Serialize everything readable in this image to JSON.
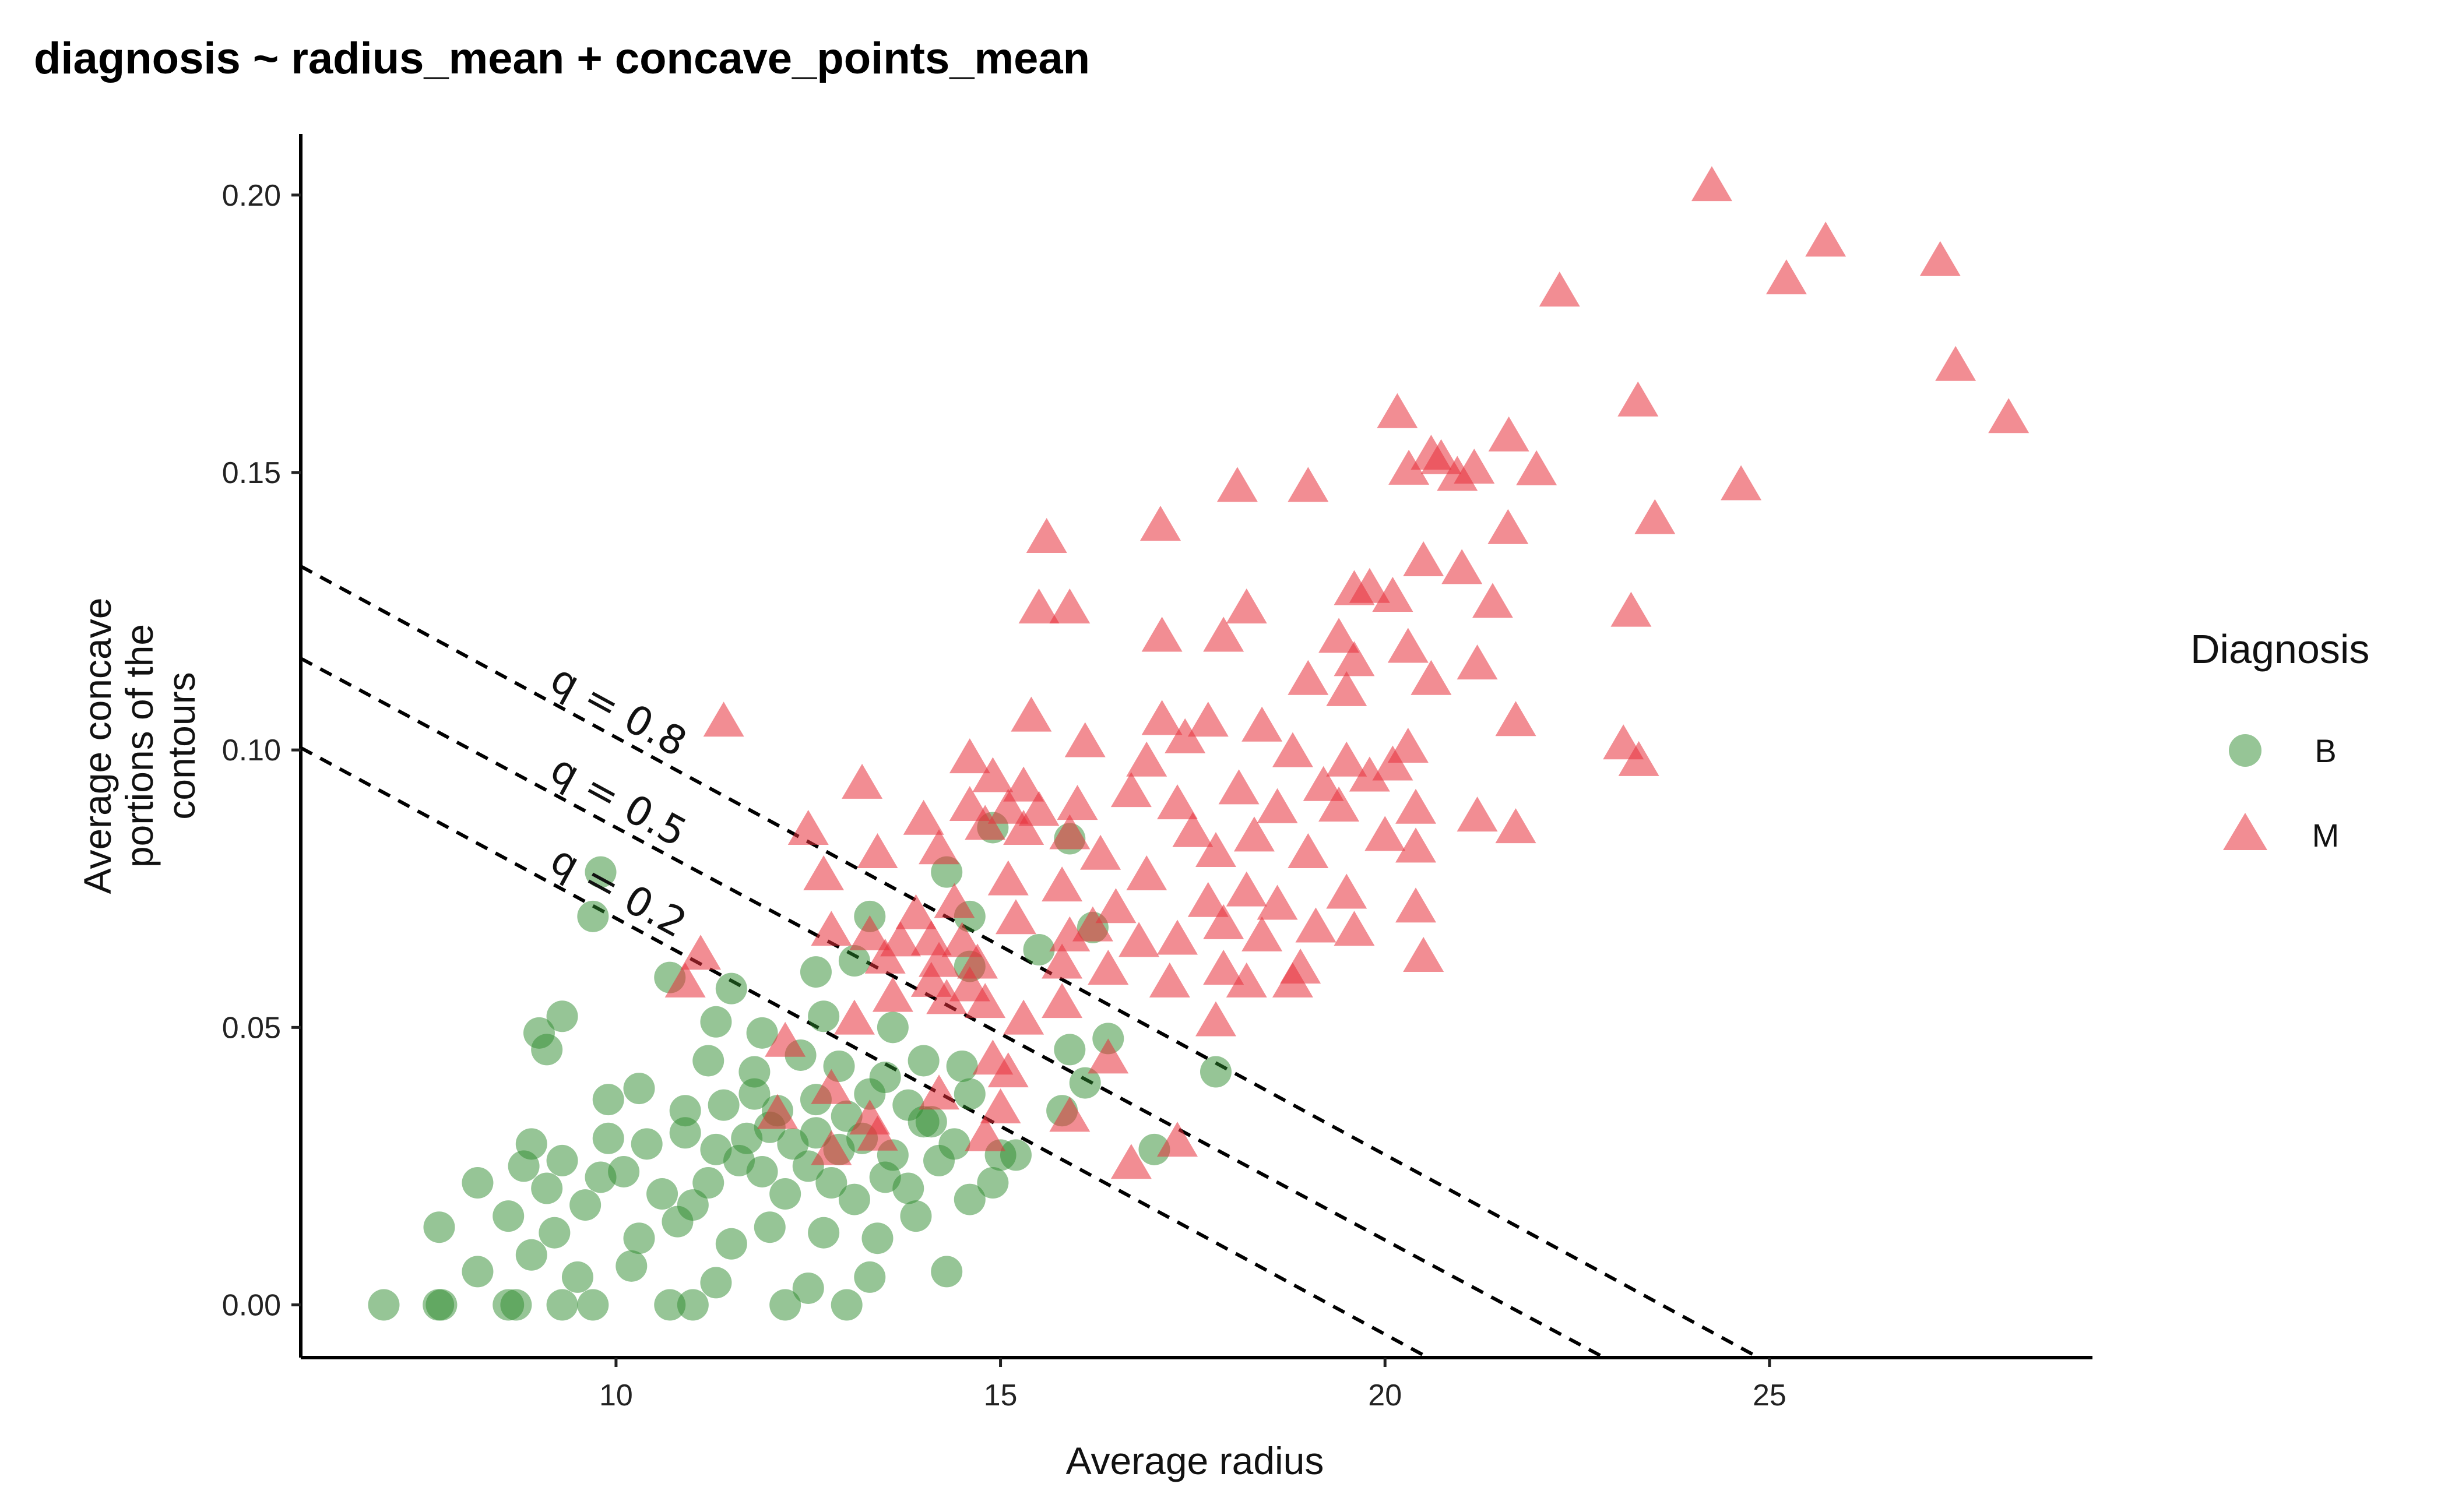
{
  "chart_data": {
    "type": "scatter",
    "title": "diagnosis ~ radius_mean + concave_points_mean",
    "xlabel": "Average radius",
    "ylabel_lines": [
      "Average concave",
      "portions of the",
      "contours"
    ],
    "xlim": [
      5.9,
      29.2
    ],
    "ylim": [
      -0.0095,
      0.211
    ],
    "x_ticks": [
      10,
      15,
      20,
      25
    ],
    "x_tick_labels": [
      "10",
      "15",
      "20",
      "25"
    ],
    "y_ticks": [
      0.0,
      0.05,
      0.1,
      0.15,
      0.2
    ],
    "y_tick_labels": [
      "0.00",
      "0.05",
      "0.10",
      "0.15",
      "0.20"
    ],
    "grid": false,
    "legend": {
      "title": "Diagnosis",
      "position": "right",
      "entries": [
        "B",
        "M"
      ]
    },
    "colors": {
      "B": "#2e8b2e",
      "M": "#e8303a"
    },
    "series": [
      {
        "name": "B",
        "marker": "circle",
        "points": [
          [
            6.98,
            0.0
          ],
          [
            7.69,
            0.0
          ],
          [
            7.73,
            0.0
          ],
          [
            8.6,
            0.0
          ],
          [
            8.7,
            0.0
          ],
          [
            9.3,
            0.0
          ],
          [
            9.7,
            0.0
          ],
          [
            10.7,
            0.0
          ],
          [
            11.0,
            0.0
          ],
          [
            12.2,
            0.0
          ],
          [
            13.0,
            0.0
          ],
          [
            8.2,
            0.006
          ],
          [
            8.9,
            0.009
          ],
          [
            9.5,
            0.005
          ],
          [
            10.2,
            0.007
          ],
          [
            11.3,
            0.004
          ],
          [
            12.5,
            0.003
          ],
          [
            13.3,
            0.005
          ],
          [
            14.3,
            0.006
          ],
          [
            7.7,
            0.014
          ],
          [
            8.6,
            0.016
          ],
          [
            9.2,
            0.013
          ],
          [
            9.6,
            0.018
          ],
          [
            10.3,
            0.012
          ],
          [
            10.8,
            0.015
          ],
          [
            11.5,
            0.011
          ],
          [
            12.0,
            0.014
          ],
          [
            12.7,
            0.013
          ],
          [
            13.4,
            0.012
          ],
          [
            13.9,
            0.016
          ],
          [
            14.6,
            0.019
          ],
          [
            8.2,
            0.022
          ],
          [
            8.8,
            0.025
          ],
          [
            9.1,
            0.021
          ],
          [
            9.8,
            0.023
          ],
          [
            10.1,
            0.024
          ],
          [
            10.6,
            0.02
          ],
          [
            11.0,
            0.018
          ],
          [
            11.2,
            0.022
          ],
          [
            11.6,
            0.026
          ],
          [
            11.9,
            0.024
          ],
          [
            12.2,
            0.02
          ],
          [
            12.5,
            0.025
          ],
          [
            12.8,
            0.022
          ],
          [
            13.1,
            0.019
          ],
          [
            13.5,
            0.023
          ],
          [
            13.8,
            0.021
          ],
          [
            14.2,
            0.026
          ],
          [
            14.9,
            0.022
          ],
          [
            8.9,
            0.029
          ],
          [
            9.3,
            0.026
          ],
          [
            9.9,
            0.03
          ],
          [
            10.4,
            0.029
          ],
          [
            10.9,
            0.031
          ],
          [
            11.3,
            0.028
          ],
          [
            11.7,
            0.03
          ],
          [
            12.0,
            0.032
          ],
          [
            12.3,
            0.029
          ],
          [
            12.6,
            0.031
          ],
          [
            12.9,
            0.028
          ],
          [
            13.2,
            0.03
          ],
          [
            13.6,
            0.027
          ],
          [
            14.0,
            0.033
          ],
          [
            14.4,
            0.029
          ],
          [
            15.0,
            0.027
          ],
          [
            9.9,
            0.037
          ],
          [
            10.3,
            0.039
          ],
          [
            10.9,
            0.035
          ],
          [
            11.4,
            0.036
          ],
          [
            11.8,
            0.038
          ],
          [
            12.1,
            0.035
          ],
          [
            12.6,
            0.037
          ],
          [
            13.0,
            0.034
          ],
          [
            13.3,
            0.038
          ],
          [
            13.8,
            0.036
          ],
          [
            14.1,
            0.033
          ],
          [
            14.6,
            0.038
          ],
          [
            9.1,
            0.046
          ],
          [
            11.2,
            0.044
          ],
          [
            11.8,
            0.042
          ],
          [
            12.4,
            0.045
          ],
          [
            12.9,
            0.043
          ],
          [
            13.5,
            0.041
          ],
          [
            14.0,
            0.044
          ],
          [
            14.5,
            0.043
          ],
          [
            15.9,
            0.046
          ],
          [
            16.4,
            0.048
          ],
          [
            9.0,
            0.049
          ],
          [
            9.3,
            0.052
          ],
          [
            11.3,
            0.051
          ],
          [
            11.9,
            0.049
          ],
          [
            12.7,
            0.052
          ],
          [
            13.6,
            0.05
          ],
          [
            10.7,
            0.059
          ],
          [
            11.5,
            0.057
          ],
          [
            12.6,
            0.06
          ],
          [
            13.1,
            0.062
          ],
          [
            14.6,
            0.061
          ],
          [
            15.5,
            0.064
          ],
          [
            9.7,
            0.07
          ],
          [
            13.3,
            0.07
          ],
          [
            14.6,
            0.07
          ],
          [
            16.2,
            0.068
          ],
          [
            9.8,
            0.078
          ],
          [
            14.3,
            0.078
          ],
          [
            17.8,
            0.042
          ],
          [
            17.0,
            0.028
          ],
          [
            15.2,
            0.027
          ],
          [
            15.8,
            0.035
          ],
          [
            16.1,
            0.04
          ],
          [
            14.9,
            0.086
          ],
          [
            15.9,
            0.084
          ]
        ]
      },
      {
        "name": "M",
        "marker": "triangle",
        "points": [
          [
            24.25,
            0.2013
          ],
          [
            25.73,
            0.1913
          ],
          [
            27.22,
            0.1878
          ],
          [
            25.22,
            0.1845
          ],
          [
            22.27,
            0.1823
          ],
          [
            27.42,
            0.1689
          ],
          [
            28.11,
            0.1595
          ],
          [
            23.29,
            0.1625
          ],
          [
            20.16,
            0.1604
          ],
          [
            21.61,
            0.1562
          ],
          [
            21.16,
            0.1504
          ],
          [
            20.6,
            0.1529
          ],
          [
            20.73,
            0.1521
          ],
          [
            20.31,
            0.1502
          ],
          [
            21.97,
            0.1501
          ],
          [
            20.94,
            0.1491
          ],
          [
            18.08,
            0.1471
          ],
          [
            19.0,
            0.1471
          ],
          [
            24.63,
            0.1474
          ],
          [
            17.08,
            0.1401
          ],
          [
            15.6,
            0.1379
          ],
          [
            21.6,
            0.1395
          ],
          [
            23.51,
            0.1413
          ],
          [
            20.5,
            0.1337
          ],
          [
            21.0,
            0.1323
          ],
          [
            19.6,
            0.1285
          ],
          [
            19.8,
            0.1289
          ],
          [
            20.1,
            0.1273
          ],
          [
            15.5,
            0.1252
          ],
          [
            15.9,
            0.1252
          ],
          [
            18.2,
            0.1252
          ],
          [
            21.4,
            0.1262
          ],
          [
            23.2,
            0.1246
          ],
          [
            17.1,
            0.1201
          ],
          [
            17.9,
            0.1201
          ],
          [
            19.4,
            0.1199
          ],
          [
            19.6,
            0.1157
          ],
          [
            20.3,
            0.1181
          ],
          [
            21.2,
            0.1151
          ],
          [
            19.0,
            0.1123
          ],
          [
            20.6,
            0.1123
          ],
          [
            19.5,
            0.1103
          ],
          [
            15.4,
            0.1057
          ],
          [
            17.1,
            0.1051
          ],
          [
            18.4,
            0.1039
          ],
          [
            21.7,
            0.1049
          ],
          [
            11.4,
            0.1048
          ],
          [
            16.1,
            0.1011
          ],
          [
            17.4,
            0.1018
          ],
          [
            17.7,
            0.1048
          ],
          [
            18.8,
            0.0993
          ],
          [
            20.3,
            0.1001
          ],
          [
            14.6,
            0.0982
          ],
          [
            16.9,
            0.0976
          ],
          [
            19.5,
            0.0976
          ],
          [
            20.1,
            0.0969
          ],
          [
            23.1,
            0.1007
          ],
          [
            23.3,
            0.0977
          ],
          [
            13.2,
            0.0936
          ],
          [
            14.9,
            0.0948
          ],
          [
            15.3,
            0.0931
          ],
          [
            16.7,
            0.0921
          ],
          [
            18.1,
            0.0926
          ],
          [
            19.2,
            0.0932
          ],
          [
            19.8,
            0.0949
          ],
          [
            14.6,
            0.0896
          ],
          [
            15.1,
            0.0891
          ],
          [
            15.5,
            0.0887
          ],
          [
            16.0,
            0.0898
          ],
          [
            17.3,
            0.0899
          ],
          [
            18.6,
            0.0892
          ],
          [
            19.4,
            0.0895
          ],
          [
            20.4,
            0.0891
          ],
          [
            21.2,
            0.0877
          ],
          [
            12.5,
            0.0853
          ],
          [
            14.0,
            0.0871
          ],
          [
            14.8,
            0.0862
          ],
          [
            15.3,
            0.0853
          ],
          [
            15.9,
            0.0845
          ],
          [
            17.5,
            0.0849
          ],
          [
            18.3,
            0.0841
          ],
          [
            20.0,
            0.0842
          ],
          [
            21.7,
            0.0856
          ],
          [
            13.4,
            0.0811
          ],
          [
            14.2,
            0.0818
          ],
          [
            16.3,
            0.0808
          ],
          [
            17.8,
            0.0813
          ],
          [
            19.0,
            0.0811
          ],
          [
            20.4,
            0.0821
          ],
          [
            12.7,
            0.0771
          ],
          [
            15.1,
            0.0762
          ],
          [
            15.8,
            0.0751
          ],
          [
            16.9,
            0.0771
          ],
          [
            18.2,
            0.0742
          ],
          [
            19.5,
            0.0738
          ],
          [
            14.4,
            0.0721
          ],
          [
            16.5,
            0.0712
          ],
          [
            17.7,
            0.0723
          ],
          [
            18.6,
            0.0718
          ],
          [
            20.4,
            0.0713
          ],
          [
            13.9,
            0.0701
          ],
          [
            15.2,
            0.0692
          ],
          [
            16.2,
            0.0679
          ],
          [
            17.9,
            0.0683
          ],
          [
            19.1,
            0.0677
          ],
          [
            12.8,
            0.0671
          ],
          [
            13.3,
            0.0663
          ],
          [
            13.7,
            0.0652
          ],
          [
            14.1,
            0.0654
          ],
          [
            14.5,
            0.0651
          ],
          [
            15.9,
            0.0661
          ],
          [
            16.8,
            0.0651
          ],
          [
            17.3,
            0.0655
          ],
          [
            18.4,
            0.0661
          ],
          [
            19.6,
            0.0671
          ],
          [
            20.5,
            0.0624
          ],
          [
            11.1,
            0.0628
          ],
          [
            13.5,
            0.0621
          ],
          [
            14.2,
            0.0615
          ],
          [
            14.7,
            0.0612
          ],
          [
            15.8,
            0.0612
          ],
          [
            16.4,
            0.0601
          ],
          [
            17.9,
            0.0601
          ],
          [
            18.9,
            0.0603
          ],
          [
            10.9,
            0.0578
          ],
          [
            14.1,
            0.0579
          ],
          [
            14.6,
            0.0571
          ],
          [
            17.2,
            0.0578
          ],
          [
            18.2,
            0.0578
          ],
          [
            18.8,
            0.0578
          ],
          [
            13.6,
            0.0552
          ],
          [
            14.3,
            0.0548
          ],
          [
            14.8,
            0.0541
          ],
          [
            15.8,
            0.0541
          ],
          [
            13.1,
            0.0511
          ],
          [
            15.3,
            0.0511
          ],
          [
            17.8,
            0.0508
          ],
          [
            12.2,
            0.0471
          ],
          [
            14.9,
            0.0439
          ],
          [
            15.1,
            0.0416
          ],
          [
            16.4,
            0.0441
          ],
          [
            12.8,
            0.0386
          ],
          [
            14.2,
            0.0376
          ],
          [
            15.0,
            0.0351
          ],
          [
            13.3,
            0.0331
          ],
          [
            14.8,
            0.0301
          ],
          [
            15.9,
            0.0336
          ],
          [
            17.3,
            0.0291
          ],
          [
            12.8,
            0.0276
          ],
          [
            16.7,
            0.0251
          ],
          [
            12.1,
            0.0341
          ],
          [
            13.4,
            0.0302
          ]
        ]
      }
    ],
    "reference_lines": [
      {
        "label": "q = 0.8",
        "line": [
          [
            5.9,
            0.1331
          ],
          [
            24.86,
            -0.0095
          ]
        ]
      },
      {
        "label": "q = 0.5",
        "line": [
          [
            5.9,
            0.1165
          ],
          [
            22.85,
            -0.0095
          ]
        ]
      },
      {
        "label": "q = 0.2",
        "line": [
          [
            5.9,
            0.1004
          ],
          [
            20.56,
            -0.0095
          ]
        ]
      }
    ]
  }
}
